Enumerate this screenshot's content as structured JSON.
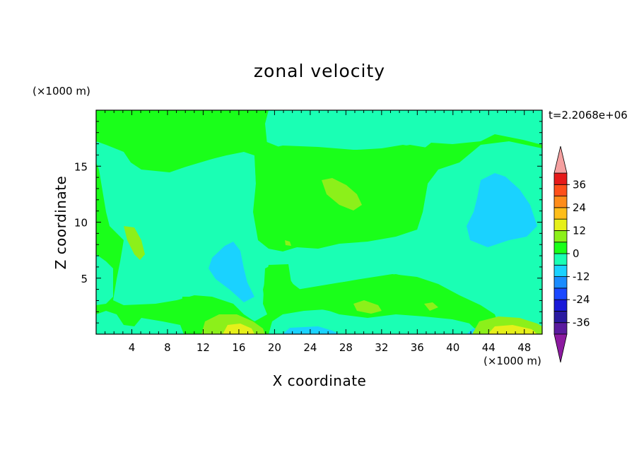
{
  "chart_data": {
    "type": "heatmap",
    "title": "zonal velocity",
    "xlabel": "X coordinate",
    "ylabel": "Z coordinate",
    "x_unit": "(×1000 m)",
    "y_unit": "(×1000 m)",
    "time_label": "t=2.2068e+06",
    "xlim": [
      0,
      50
    ],
    "ylim": [
      0,
      20
    ],
    "x_ticks": [
      4,
      8,
      12,
      16,
      20,
      24,
      28,
      32,
      36,
      40,
      44,
      48
    ],
    "y_ticks": [
      5,
      10,
      15
    ],
    "colorbar": {
      "levels": [
        -42,
        -36,
        -30,
        -24,
        -18,
        -12,
        -6,
        0,
        6,
        12,
        18,
        24,
        30,
        36,
        42
      ],
      "tick_labels": [
        36,
        24,
        12,
        0,
        -12,
        -24,
        -36
      ],
      "colors": [
        "#5a1a9e",
        "#2a1aa0",
        "#1a1ad8",
        "#1a48ff",
        "#1a8cff",
        "#1ad2ff",
        "#1affb4",
        "#1aff1a",
        "#8cf01a",
        "#e6f01a",
        "#ffbe1a",
        "#ff8c1a",
        "#ff501a",
        "#e61a1a"
      ],
      "over_color": "#f5a0a0",
      "under_color": "#8c1aa0",
      "extend": "both"
    },
    "regions": [
      {
        "name": "background",
        "value": 3
      },
      {
        "name": "lower-left-positive-patch",
        "value": -3
      },
      {
        "name": "central-positive-patch",
        "value": 3
      },
      {
        "name": "right-negative-patch",
        "value": -8
      },
      {
        "name": "center-negative-patch",
        "value": -8
      },
      {
        "name": "left-yellow-patch",
        "value": 8
      },
      {
        "name": "center-yellow-patch",
        "value": 8
      },
      {
        "name": "bottom-left-yellow-patch",
        "value": 10
      },
      {
        "name": "bottom-right-yellow-patch",
        "value": 10
      }
    ]
  }
}
